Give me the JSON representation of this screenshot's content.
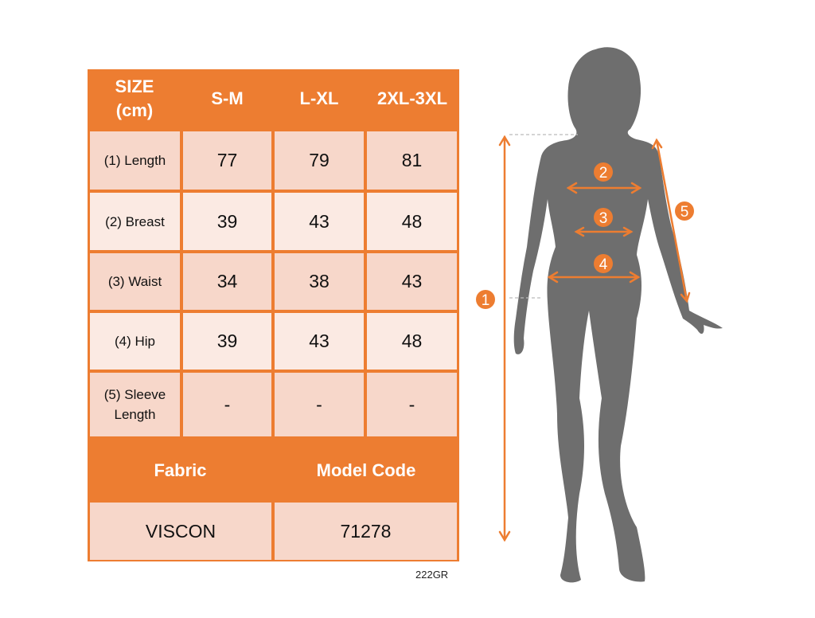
{
  "size_table": {
    "header": [
      "SIZE\n(cm)",
      "S-M",
      "L-XL",
      "2XL-3XL"
    ],
    "rows": [
      {
        "label": "(1) Length",
        "values": [
          "77",
          "79",
          "81"
        ]
      },
      {
        "label": "(2) Breast",
        "values": [
          "39",
          "43",
          "48"
        ]
      },
      {
        "label": "(3) Waist",
        "values": [
          "34",
          "38",
          "43"
        ]
      },
      {
        "label": "(4) Hip",
        "values": [
          "39",
          "43",
          "48"
        ]
      },
      {
        "label": "(5) Sleeve\nLength",
        "values": [
          "-",
          "-",
          "-"
        ]
      }
    ]
  },
  "info_table": {
    "headers": [
      "Fabric",
      "Model Code"
    ],
    "values": [
      "VISCON",
      "71278"
    ]
  },
  "product_code": "222GR",
  "figure": {
    "markers": [
      "1",
      "2",
      "3",
      "4",
      "5"
    ]
  },
  "colors": {
    "accent": "#ED7D31",
    "row_dark": "#F7D7CA",
    "row_light": "#FBEAE3",
    "silhouette": "#6E6E6E"
  }
}
